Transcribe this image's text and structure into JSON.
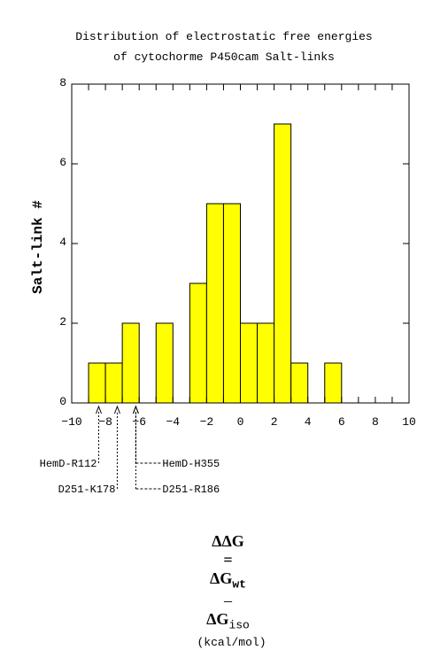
{
  "chart_data": {
    "type": "bar",
    "title_line1": "Distribution of electrostatic free energies",
    "title_line2": "of cytochorme P450cam Salt-links",
    "ylabel": "Salt-link #",
    "xlabel": {
      "delta_delta_g": "ΔΔG",
      "equals": "=",
      "delta_g_wt": "ΔG",
      "wt": "wt",
      "minus": "–",
      "delta_g_iso": "ΔG",
      "iso": "iso",
      "units": "(kcal/mol)"
    },
    "xlim": [
      -10,
      10
    ],
    "ylim": [
      0,
      8
    ],
    "x_ticks": [
      -10,
      -8,
      -6,
      -4,
      -2,
      0,
      2,
      4,
      6,
      8,
      10
    ],
    "y_ticks": [
      0,
      2,
      4,
      6,
      8
    ],
    "bin_width": 1,
    "bins": [
      {
        "x0": -9,
        "x1": -8,
        "count": 1
      },
      {
        "x0": -8,
        "x1": -7,
        "count": 1
      },
      {
        "x0": -7,
        "x1": -6,
        "count": 2
      },
      {
        "x0": -5,
        "x1": -4,
        "count": 2
      },
      {
        "x0": -3,
        "x1": -2,
        "count": 3
      },
      {
        "x0": -2,
        "x1": -1,
        "count": 5
      },
      {
        "x0": -1,
        "x1": 0,
        "count": 5
      },
      {
        "x0": 0,
        "x1": 1,
        "count": 2
      },
      {
        "x0": 1,
        "x1": 2,
        "count": 2
      },
      {
        "x0": 2,
        "x1": 3,
        "count": 7
      },
      {
        "x0": 3,
        "x1": 4,
        "count": 1
      },
      {
        "x0": 5,
        "x1": 6,
        "count": 1
      }
    ],
    "bar_color": "#ffff00",
    "annotations": [
      {
        "label": "HemD-R112",
        "x": -8.4,
        "side": "left",
        "level": 1
      },
      {
        "label": "D251-K178",
        "x": -7.3,
        "side": "left",
        "level": 2
      },
      {
        "label": "HemD-H355",
        "x": -6.2,
        "side": "right",
        "level": 1
      },
      {
        "label": "D251-R186",
        "x": -6.2,
        "side": "right",
        "level": 2
      }
    ]
  }
}
